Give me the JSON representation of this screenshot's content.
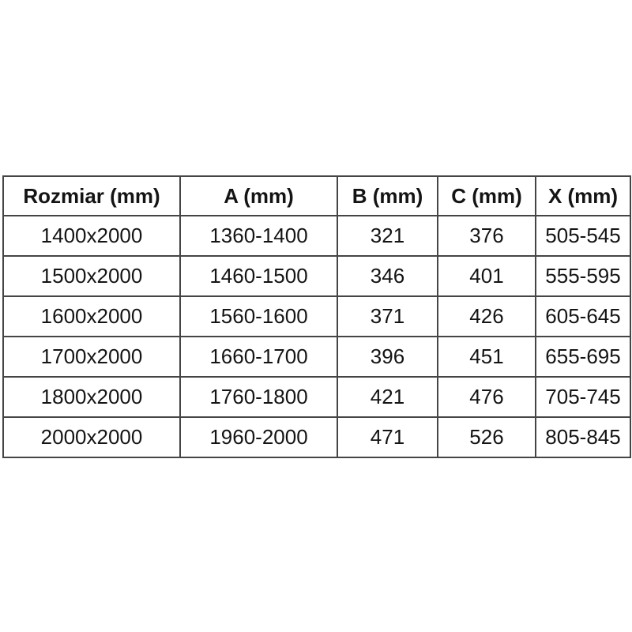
{
  "table": {
    "name": "dimension-spec-table",
    "columns": [
      "Rozmiar (mm)",
      "A (mm)",
      "B (mm)",
      "C (mm)",
      "X (mm)"
    ],
    "rows": [
      [
        "1400x2000",
        "1360-1400",
        "321",
        "376",
        "505-545"
      ],
      [
        "1500x2000",
        "1460-1500",
        "346",
        "401",
        "555-595"
      ],
      [
        "1600x2000",
        "1560-1600",
        "371",
        "426",
        "605-645"
      ],
      [
        "1700x2000",
        "1660-1700",
        "396",
        "451",
        "655-695"
      ],
      [
        "1800x2000",
        "1760-1800",
        "421",
        "476",
        "705-745"
      ],
      [
        "2000x2000",
        "1960-2000",
        "471",
        "526",
        "805-845"
      ]
    ],
    "style": {
      "border_color": "#454545",
      "text_color": "#141414",
      "background_color": "#ffffff"
    }
  }
}
